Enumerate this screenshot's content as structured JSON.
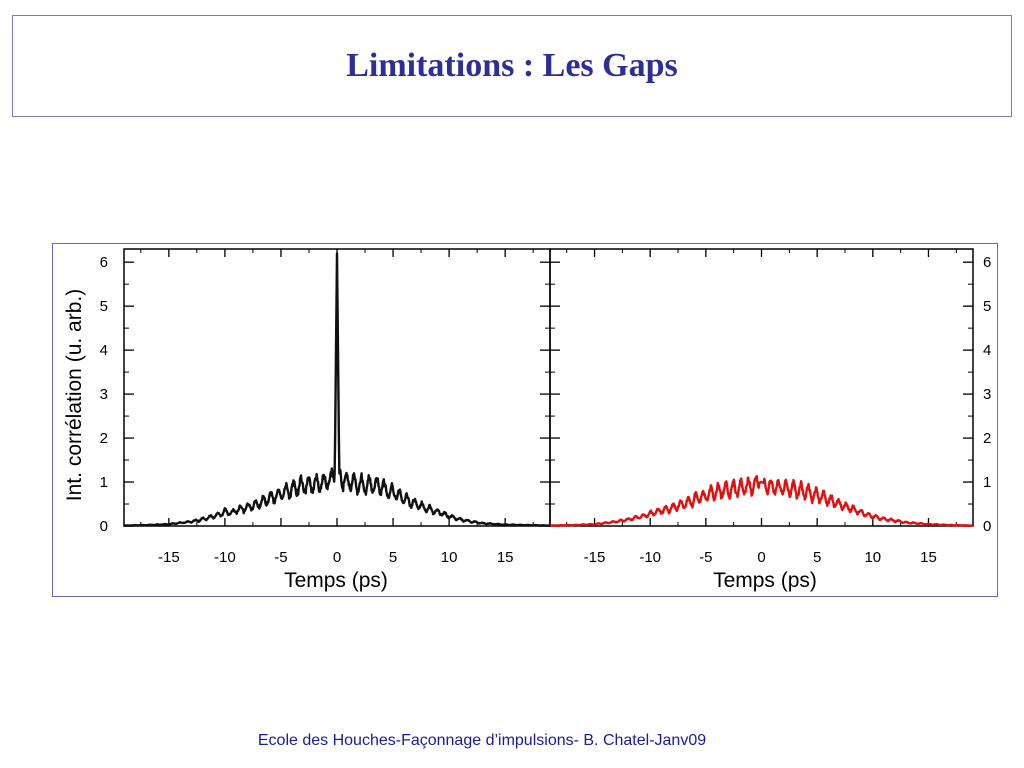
{
  "slide": {
    "title": "Limitations : Les Gaps",
    "footer": "Ecole des Houches-Façonnage d’impulsions- B. Chatel-Janv09",
    "colors": {
      "title": "#2e2e9a",
      "footer": "#1b1b9a",
      "frame": "#6a6ab0"
    }
  },
  "chart_data": [
    {
      "type": "line",
      "title": "",
      "xlabel": "Temps (ps)",
      "ylabel": "Int. corrélation (u. arb.)",
      "xlim": [
        -19,
        19
      ],
      "ylim": [
        0,
        6.3
      ],
      "xticks": [
        "-15",
        "-10",
        "-5",
        "0",
        "5",
        "10",
        "15"
      ],
      "yticks": [
        "0",
        "1",
        "2",
        "3",
        "4",
        "5",
        "6"
      ],
      "yaxis_side": "left",
      "grid": false,
      "series": [
        {
          "color": "#111111",
          "x": [
            -19,
            -17,
            -15,
            -13,
            -12,
            -11,
            -10,
            -9.5,
            -9,
            -8,
            -7,
            -6,
            -5,
            -4,
            -3,
            -2,
            -1,
            -0.5,
            -0.2,
            0,
            0.2,
            0.5,
            1,
            2,
            3,
            4,
            5,
            6,
            7,
            8,
            9,
            10,
            11,
            12,
            13,
            15,
            17,
            19
          ],
          "y": [
            0.01,
            0.02,
            0.04,
            0.1,
            0.15,
            0.22,
            0.32,
            0.3,
            0.35,
            0.42,
            0.5,
            0.62,
            0.75,
            0.85,
            0.92,
            0.95,
            1.0,
            1.05,
            1.2,
            6.2,
            1.2,
            1.05,
            1.0,
            0.95,
            0.92,
            0.88,
            0.75,
            0.62,
            0.5,
            0.4,
            0.32,
            0.22,
            0.15,
            0.1,
            0.06,
            0.03,
            0.02,
            0.01
          ]
        }
      ]
    },
    {
      "type": "line",
      "title": "",
      "xlabel": "Temps (ps)",
      "ylabel": "",
      "xlim": [
        -19,
        19
      ],
      "ylim": [
        0,
        6.3
      ],
      "xticks": [
        "-15",
        "-10",
        "-5",
        "0",
        "5",
        "10",
        "15"
      ],
      "yticks": [
        "0",
        "1",
        "2",
        "3",
        "4",
        "5",
        "6"
      ],
      "yaxis_side": "right",
      "grid": false,
      "series": [
        {
          "color": "#e01010",
          "x": [
            -19,
            -17,
            -15,
            -13,
            -12,
            -11,
            -10,
            -9,
            -8,
            -7,
            -6,
            -5,
            -4,
            -3,
            -2,
            -1,
            0,
            1,
            2,
            3,
            4,
            5,
            6,
            7,
            8,
            9,
            10,
            11,
            12,
            13,
            15,
            17,
            19
          ],
          "y": [
            0.01,
            0.02,
            0.04,
            0.1,
            0.15,
            0.2,
            0.27,
            0.35,
            0.42,
            0.5,
            0.6,
            0.7,
            0.78,
            0.82,
            0.86,
            0.9,
            1.0,
            0.9,
            0.86,
            0.82,
            0.78,
            0.7,
            0.6,
            0.5,
            0.4,
            0.3,
            0.22,
            0.16,
            0.12,
            0.08,
            0.04,
            0.02,
            0.01
          ]
        }
      ]
    }
  ]
}
